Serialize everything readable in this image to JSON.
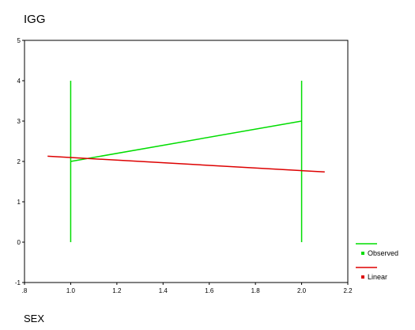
{
  "chart_data": {
    "type": "line",
    "title": "IGG",
    "xlabel": "SEX",
    "ylabel": "",
    "xlim": [
      0.8,
      2.2
    ],
    "ylim": [
      -1,
      5
    ],
    "x_ticks": [
      ".8",
      "1.0",
      "1.2",
      "1.4",
      "1.6",
      "1.8",
      "2.0",
      "2.2"
    ],
    "y_ticks": [
      "-1",
      "0",
      "1",
      "2",
      "3",
      "4",
      "5"
    ],
    "grid": false,
    "legend_position": "bottom-right",
    "series": [
      {
        "name": "Observed",
        "color": "#00dd00",
        "points": [
          [
            1.0,
            2.0
          ],
          [
            2.0,
            3.0
          ]
        ],
        "range_bars": [
          {
            "x": 1.0,
            "low": 0.0,
            "high": 4.0
          },
          {
            "x": 2.0,
            "low": 0.0,
            "high": 4.0
          }
        ]
      },
      {
        "name": "Linear",
        "color": "#dd0000",
        "points": [
          [
            0.9,
            2.13
          ],
          [
            2.1,
            1.74
          ]
        ]
      }
    ]
  }
}
